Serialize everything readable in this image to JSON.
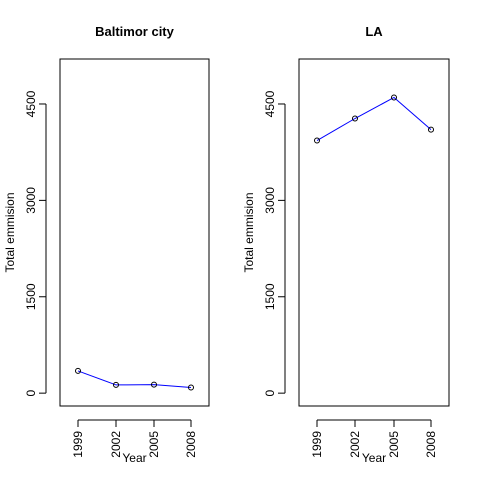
{
  "chart_data": [
    {
      "type": "line",
      "title": "Baltimor city",
      "xlabel": "Year",
      "ylabel": "Total emmision",
      "categories": [
        "1999",
        "2002",
        "2005",
        "2008"
      ],
      "values": [
        346,
        128,
        133,
        88
      ],
      "yticks": [
        0,
        1500,
        3000,
        4500
      ],
      "ytick_labels": [
        "0",
        "1500",
        "3000",
        "4500"
      ],
      "ylim": [
        -200,
        5200
      ],
      "line_color": "#0000ff",
      "marker": "open-circle",
      "grid": false
    },
    {
      "type": "line",
      "title": "LA",
      "xlabel": "Year",
      "ylabel": "Total emmision",
      "categories": [
        "1999",
        "2002",
        "2005",
        "2008"
      ],
      "values": [
        3931,
        4274,
        4601,
        4101
      ],
      "yticks": [
        0,
        1500,
        3000,
        4500
      ],
      "ytick_labels": [
        "0",
        "1500",
        "3000",
        "4500"
      ],
      "ylim": [
        -200,
        5200
      ],
      "line_color": "#0000ff",
      "marker": "open-circle",
      "grid": false
    }
  ]
}
